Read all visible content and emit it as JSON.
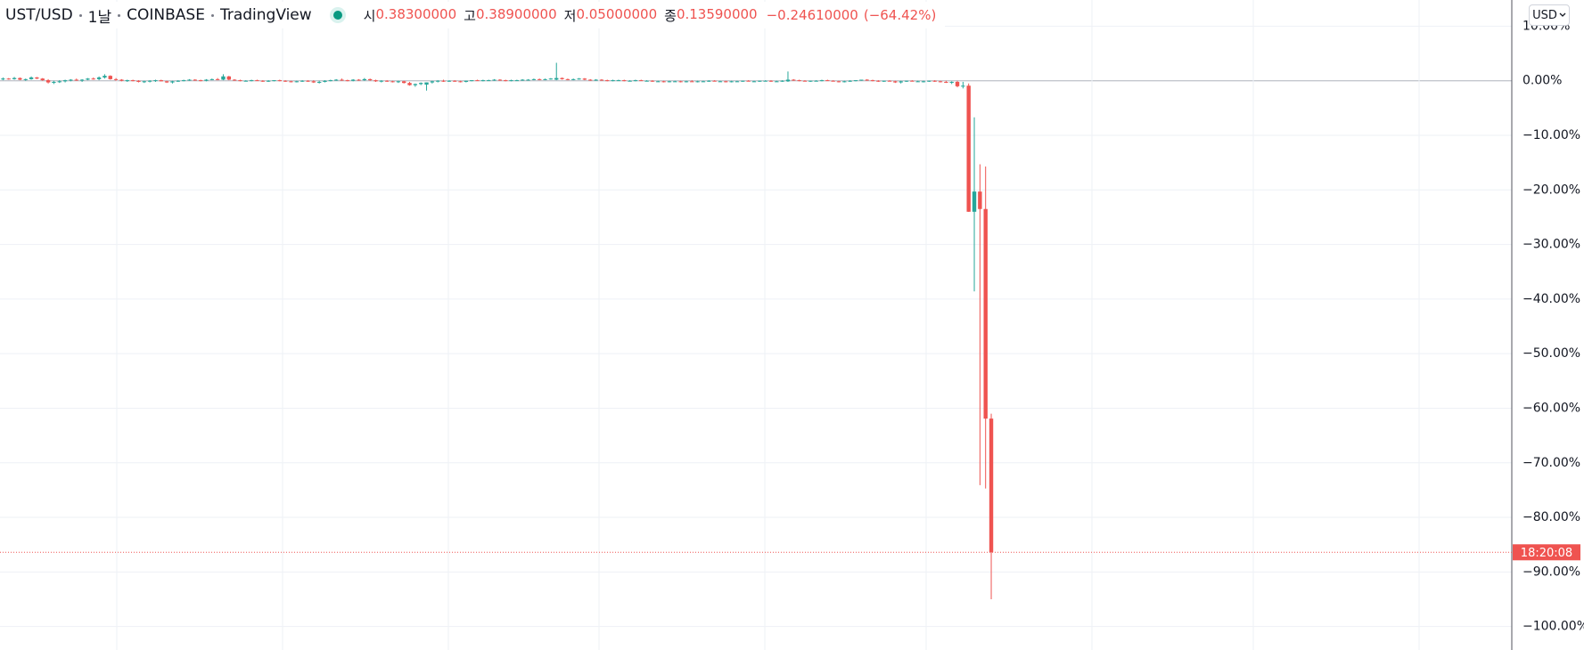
{
  "chart_data": {
    "type": "candlestick",
    "symbol": "UST/USD",
    "interval": "1날",
    "exchange": "COINBASE",
    "source": "TradingView",
    "ohlc_legend": [
      {
        "label": "시",
        "value": "0.38300000"
      },
      {
        "label": "고",
        "value": "0.38900000"
      },
      {
        "label": "저",
        "value": "0.05000000"
      },
      {
        "label": "종",
        "value": "0.13590000"
      }
    ],
    "change": "−0.24610000",
    "change_pct": "(−64.42%)",
    "currency": "USD",
    "countdown": "18:20:08",
    "up_color": "#26a69a",
    "down_color": "#ef5350",
    "ylim": [
      -104.3,
      14.8
    ],
    "yticks": [
      {
        "value": 10,
        "label": "10.00%"
      },
      {
        "value": 0,
        "label": "0.00%"
      },
      {
        "value": -10,
        "label": "−10.00%"
      },
      {
        "value": -20,
        "label": "−20.00%"
      },
      {
        "value": -30,
        "label": "−30.00%"
      },
      {
        "value": -40,
        "label": "−40.00%"
      },
      {
        "value": -50,
        "label": "−50.00%"
      },
      {
        "value": -60,
        "label": "−60.00%"
      },
      {
        "value": -70,
        "label": "−70.00%"
      },
      {
        "value": -80,
        "label": "−80.00%"
      },
      {
        "value": -90,
        "label": "−90.00%"
      },
      {
        "value": -100,
        "label": "−100.00%"
      }
    ],
    "grid": true,
    "ohlc": [
      [
        0.3,
        0.6,
        0.1,
        0.4
      ],
      [
        0.4,
        0.5,
        0.2,
        0.3
      ],
      [
        0.3,
        0.7,
        0.2,
        0.5
      ],
      [
        0.5,
        0.6,
        0.1,
        0.2
      ],
      [
        0.2,
        0.4,
        0,
        0.3
      ],
      [
        0.3,
        0.8,
        0.2,
        0.6
      ],
      [
        0.6,
        0.7,
        0.3,
        0.4
      ],
      [
        0.4,
        0.5,
        0,
        0.1
      ],
      [
        0.1,
        0.3,
        -0.5,
        -0.3
      ],
      [
        -0.3,
        0,
        -0.6,
        -0.2
      ],
      [
        -0.2,
        0.1,
        -0.4,
        -0.1
      ],
      [
        -0.1,
        0.2,
        -0.3,
        0.1
      ],
      [
        0.1,
        0.3,
        -0.1,
        0.2
      ],
      [
        0.2,
        0.4,
        0,
        0.1
      ],
      [
        0.1,
        0.3,
        -0.2,
        0.2
      ],
      [
        0.2,
        0.5,
        0.1,
        0.4
      ],
      [
        0.4,
        0.6,
        0.2,
        0.3
      ],
      [
        0.3,
        0.8,
        0.1,
        0.6
      ],
      [
        0.6,
        1.2,
        0.4,
        0.9
      ],
      [
        0.9,
        1,
        0.2,
        0.3
      ],
      [
        0.3,
        0.5,
        0,
        0.2
      ],
      [
        0.2,
        0.3,
        -0.1,
        0
      ],
      [
        0,
        0.2,
        -0.2,
        0.1
      ],
      [
        0.1,
        0.2,
        -0.1,
        0
      ],
      [
        0,
        0.1,
        -0.3,
        -0.2
      ],
      [
        -0.2,
        0,
        -0.4,
        -0.1
      ],
      [
        -0.1,
        0.1,
        -0.3,
        0
      ],
      [
        0,
        0.2,
        -0.2,
        0.1
      ],
      [
        0.1,
        0.2,
        -0.1,
        -0.1
      ],
      [
        -0.1,
        0,
        -0.4,
        -0.3
      ],
      [
        -0.3,
        0,
        -0.5,
        -0.1
      ],
      [
        -0.1,
        0.1,
        -0.2,
        0
      ],
      [
        0,
        0.2,
        -0.1,
        0.1
      ],
      [
        0.1,
        0.3,
        0,
        0.2
      ],
      [
        0.2,
        0.3,
        0,
        0.1
      ],
      [
        0.1,
        0.2,
        -0.1,
        0
      ],
      [
        0,
        0.3,
        -0.1,
        0.2
      ],
      [
        0.2,
        0.4,
        0.1,
        0.3
      ],
      [
        0.3,
        0.5,
        0.1,
        0.2
      ],
      [
        0.2,
        1.2,
        0.1,
        0.8
      ],
      [
        0.8,
        0.9,
        0.1,
        0.2
      ],
      [
        0.2,
        0.3,
        0,
        0.1
      ],
      [
        0.1,
        0.2,
        -0.1,
        0
      ],
      [
        0,
        0.1,
        -0.1,
        0
      ],
      [
        0,
        0.2,
        -0.1,
        0.1
      ],
      [
        0.1,
        0.2,
        0,
        0
      ],
      [
        0,
        0.1,
        -0.2,
        -0.1
      ],
      [
        -0.1,
        0.1,
        -0.2,
        0
      ],
      [
        0,
        0.1,
        -0.1,
        0.1
      ],
      [
        0.1,
        0.2,
        -0.1,
        0
      ],
      [
        0,
        0.1,
        -0.2,
        -0.1
      ],
      [
        -0.1,
        0,
        -0.3,
        -0.2
      ],
      [
        -0.2,
        0,
        -0.3,
        -0.1
      ],
      [
        -0.1,
        0.1,
        -0.2,
        0
      ],
      [
        0,
        0.1,
        -0.2,
        -0.1
      ],
      [
        -0.1,
        0.1,
        -0.4,
        -0.3
      ],
      [
        -0.3,
        0,
        -0.5,
        -0.2
      ],
      [
        -0.2,
        0.1,
        -0.3,
        0
      ],
      [
        0,
        0.2,
        -0.1,
        0.1
      ],
      [
        0.1,
        0.3,
        0,
        0.2
      ],
      [
        0.2,
        0.4,
        0,
        0.1
      ],
      [
        0.1,
        0.2,
        -0.1,
        0
      ],
      [
        0,
        0.3,
        -0.1,
        0.2
      ],
      [
        0.2,
        0.3,
        0,
        0.1
      ],
      [
        0.1,
        0.5,
        0,
        0.3
      ],
      [
        0.3,
        0.4,
        0,
        0.1
      ],
      [
        0.1,
        0.2,
        -0.2,
        -0.1
      ],
      [
        -0.1,
        0.1,
        -0.3,
        0
      ],
      [
        0,
        0.1,
        -0.2,
        -0.1
      ],
      [
        -0.1,
        0,
        -0.3,
        -0.2
      ],
      [
        -0.2,
        0,
        -0.4,
        -0.1
      ],
      [
        -0.1,
        0,
        -0.5,
        -0.4
      ],
      [
        -0.4,
        -0.2,
        -0.9,
        -0.8
      ],
      [
        -0.8,
        -0.5,
        -1.1,
        -0.6
      ],
      [
        -0.6,
        -0.3,
        -0.8,
        -0.4
      ],
      [
        -0.7,
        -0.3,
        -1.8,
        -0.3
      ],
      [
        -0.3,
        0,
        -0.5,
        -0.1
      ],
      [
        -0.1,
        0.1,
        -0.3,
        0
      ],
      [
        0,
        0.2,
        -0.2,
        -0.1
      ],
      [
        -0.1,
        0.1,
        -0.2,
        0
      ],
      [
        0,
        0.1,
        -0.2,
        -0.1
      ],
      [
        -0.1,
        0,
        -0.3,
        -0.2
      ],
      [
        -0.2,
        0,
        -0.3,
        0
      ],
      [
        0,
        0.1,
        -0.1,
        0.1
      ],
      [
        0.1,
        0.2,
        0,
        0
      ],
      [
        0,
        0.2,
        -0.1,
        0.1
      ],
      [
        0.1,
        0.2,
        0,
        0.1
      ],
      [
        0.1,
        0.3,
        0,
        0.2
      ],
      [
        0.2,
        0.3,
        0,
        0.1
      ],
      [
        0.1,
        0.2,
        -0.1,
        0
      ],
      [
        0,
        0.2,
        -0.1,
        0.1
      ],
      [
        0.1,
        0.2,
        0,
        0.1
      ],
      [
        0.1,
        0.3,
        0,
        0.2
      ],
      [
        0.2,
        0.3,
        0.1,
        0.2
      ],
      [
        0.2,
        0.4,
        0.1,
        0.3
      ],
      [
        0.3,
        0.4,
        0.1,
        0.2
      ],
      [
        0.2,
        0.4,
        0.1,
        0.3
      ],
      [
        0.3,
        0.5,
        0.2,
        0.4
      ],
      [
        0.2,
        3.3,
        0.1,
        0.5
      ],
      [
        0.5,
        0.6,
        0.2,
        0.3
      ],
      [
        0.3,
        0.4,
        0.1,
        0.2
      ],
      [
        0.2,
        0.4,
        0.1,
        0.3
      ],
      [
        0.3,
        0.5,
        0.2,
        0.4
      ],
      [
        0.4,
        0.5,
        0.1,
        0.2
      ],
      [
        0.2,
        0.3,
        0,
        0.1
      ],
      [
        0.1,
        0.3,
        0,
        0.2
      ],
      [
        0.2,
        0.3,
        0,
        0.1
      ],
      [
        0.1,
        0.2,
        -0.1,
        0
      ],
      [
        0,
        0.2,
        -0.1,
        0.1
      ],
      [
        0.1,
        0.2,
        0,
        0.1
      ],
      [
        0.1,
        0.2,
        -0.1,
        0
      ],
      [
        0,
        0.1,
        -0.1,
        0
      ],
      [
        0,
        0.2,
        -0.1,
        0.1
      ],
      [
        0.1,
        0.2,
        0,
        0
      ],
      [
        0,
        0.1,
        -0.1,
        0
      ],
      [
        0,
        0.1,
        -0.2,
        -0.1
      ],
      [
        -0.1,
        0,
        -0.2,
        -0.1
      ],
      [
        -0.1,
        0,
        -0.3,
        -0.2
      ],
      [
        -0.2,
        0,
        -0.3,
        -0.1
      ],
      [
        -0.1,
        0,
        -0.2,
        -0.1
      ],
      [
        -0.1,
        0,
        -0.3,
        -0.2
      ],
      [
        -0.2,
        0,
        -0.3,
        -0.1
      ],
      [
        -0.1,
        0.1,
        -0.2,
        -0.2
      ],
      [
        -0.2,
        0,
        -0.3,
        -0.1
      ],
      [
        -0.1,
        0,
        -0.2,
        -0.1
      ],
      [
        -0.1,
        0.1,
        -0.2,
        0
      ],
      [
        0,
        0.1,
        -0.1,
        -0.1
      ],
      [
        -0.1,
        0,
        -0.2,
        -0.1
      ],
      [
        -0.1,
        0,
        -0.3,
        -0.2
      ],
      [
        -0.2,
        0,
        -0.3,
        -0.1
      ],
      [
        -0.1,
        0,
        -0.2,
        -0.1
      ],
      [
        -0.1,
        0,
        -0.2,
        0
      ],
      [
        0,
        0.1,
        -0.1,
        -0.1
      ],
      [
        -0.1,
        0,
        -0.2,
        -0.1
      ],
      [
        -0.1,
        0,
        -0.2,
        0
      ],
      [
        0,
        0.1,
        -0.1,
        0
      ],
      [
        0,
        0.1,
        -0.2,
        -0.1
      ],
      [
        -0.1,
        0,
        -0.2,
        -0.1
      ],
      [
        -0.1,
        0.1,
        -0.2,
        0
      ],
      [
        -0.1,
        1.7,
        -0.2,
        0.2
      ],
      [
        0.2,
        0.3,
        0,
        0.1
      ],
      [
        0.1,
        0.2,
        -0.1,
        0
      ],
      [
        0,
        0.1,
        -0.1,
        -0.1
      ],
      [
        -0.1,
        0,
        -0.2,
        0
      ],
      [
        0,
        0.1,
        -0.1,
        0
      ],
      [
        0,
        0.2,
        -0.1,
        0.1
      ],
      [
        0.1,
        0.2,
        0,
        0
      ],
      [
        0,
        0.1,
        -0.1,
        -0.1
      ],
      [
        -0.1,
        0,
        -0.3,
        -0.2
      ],
      [
        -0.2,
        0,
        -0.3,
        -0.1
      ],
      [
        -0.1,
        0.1,
        -0.2,
        0
      ],
      [
        0,
        0.1,
        -0.1,
        0.1
      ],
      [
        0.1,
        0.2,
        0,
        0.2
      ],
      [
        0.2,
        0.3,
        0,
        0.1
      ],
      [
        0.1,
        0.2,
        -0.1,
        0
      ],
      [
        0,
        0.1,
        -0.2,
        -0.1
      ],
      [
        -0.1,
        0,
        -0.2,
        0
      ],
      [
        0,
        0.1,
        -0.1,
        -0.1
      ],
      [
        -0.1,
        0,
        -0.4,
        -0.3
      ],
      [
        -0.3,
        0,
        -0.5,
        -0.1
      ],
      [
        -0.1,
        0,
        -0.2,
        0
      ],
      [
        0,
        0.1,
        -0.1,
        -0.1
      ],
      [
        -0.1,
        0,
        -0.2,
        -0.1
      ],
      [
        -0.1,
        0,
        -0.3,
        -0.1
      ],
      [
        -0.1,
        0,
        -0.2,
        0
      ],
      [
        0,
        0.1,
        -0.2,
        -0.1
      ],
      [
        -0.1,
        0,
        -0.3,
        -0.2
      ],
      [
        -0.2,
        0,
        -0.4,
        -0.3
      ],
      [
        -0.3,
        -0.1,
        -0.6,
        -0.2
      ],
      [
        -0.2,
        0,
        -1.2,
        -1
      ],
      [
        -1,
        -0.2,
        -1.4,
        -0.9
      ],
      [
        -0.9,
        -0.5,
        -24,
        -24
      ],
      [
        -24,
        -6.7,
        -38.6,
        -20.3
      ],
      [
        -20.3,
        -15.3,
        -74.1,
        -23.5
      ],
      [
        -23.5,
        -15.7,
        -74.7,
        -61.9
      ],
      [
        -61.9,
        -61,
        -95,
        -86.4
      ]
    ]
  }
}
